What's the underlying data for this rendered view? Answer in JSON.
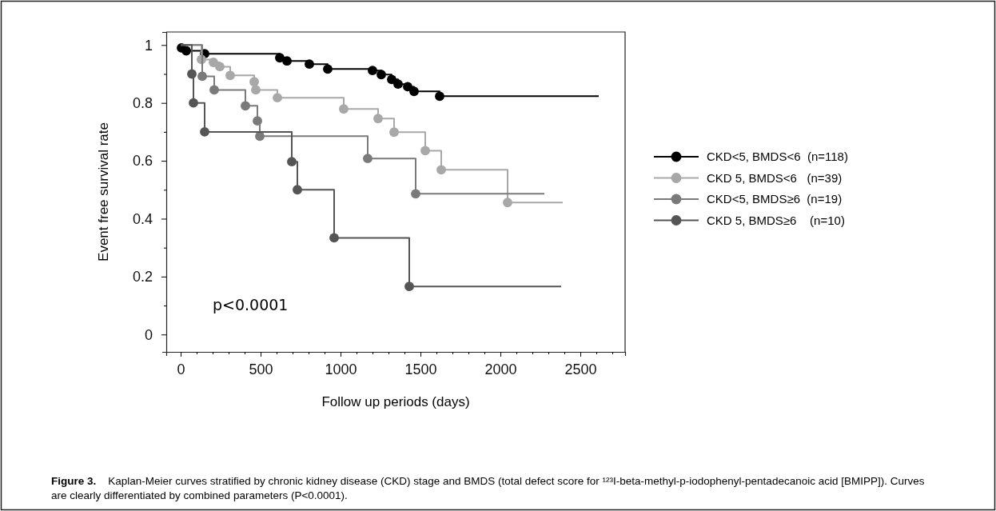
{
  "chart_data": {
    "type": "step",
    "xlabel": "Follow up periods (days)",
    "ylabel": "Event free survival rate",
    "xlim": [
      -90,
      2780
    ],
    "ylim": [
      -0.06,
      1.045
    ],
    "xticks": [
      0,
      {
        "value": 100,
        "label": null
      },
      {
        "value": 200,
        "label": null
      },
      {
        "value": 300,
        "label": null
      },
      {
        "value": 400,
        "label": null
      },
      500,
      {
        "value": 600,
        "label": null
      },
      {
        "value": 700,
        "label": null
      },
      {
        "value": 800,
        "label": null
      },
      {
        "value": 900,
        "label": null
      },
      1000,
      {
        "value": 1100,
        "label": null
      },
      {
        "value": 1200,
        "label": null
      },
      {
        "value": 1300,
        "label": null
      },
      {
        "value": 1400,
        "label": null
      },
      1500,
      {
        "value": 1600,
        "label": null
      },
      {
        "value": 1700,
        "label": null
      },
      {
        "value": 1800,
        "label": null
      },
      {
        "value": 1900,
        "label": null
      },
      2000,
      {
        "value": 2100,
        "label": null
      },
      {
        "value": 2200,
        "label": null
      },
      {
        "value": 2300,
        "label": null
      },
      {
        "value": 2400,
        "label": null
      },
      2500,
      {
        "value": 2600,
        "label": null
      },
      {
        "value": 2700,
        "label": null
      }
    ],
    "yticks": [
      0,
      {
        "value": 0.1,
        "label": null
      },
      0.2,
      {
        "value": 0.3,
        "label": null
      },
      0.4,
      {
        "value": 0.5,
        "label": null
      },
      0.6,
      {
        "value": 0.7,
        "label": null
      },
      0.8,
      {
        "value": 0.9,
        "label": null
      },
      1
    ],
    "marker": "circle",
    "legend": "right",
    "grid": false,
    "series": [
      {
        "name": "CKD<5, BMDS<6  (n=118)",
        "color": "#000000",
        "x": [
          0,
          5,
          35,
          150,
          620,
          665,
          805,
          920,
          1200,
          1255,
          1320,
          1360,
          1420,
          1460,
          1620,
          2615
        ],
        "values": [
          1,
          0.99,
          0.98,
          0.97,
          0.956,
          0.945,
          0.934,
          0.917,
          0.912,
          0.898,
          0.881,
          0.865,
          0.856,
          0.84,
          0.823,
          0.823
        ]
      },
      {
        "name": "CKD 5, BMDS<6   (n=39)",
        "color": "#a8a8a8",
        "x": [
          0,
          130,
          205,
          245,
          310,
          460,
          470,
          605,
          1020,
          1235,
          1335,
          1530,
          1630,
          2045,
          2390
        ],
        "values": [
          1,
          0.95,
          0.94,
          0.925,
          0.895,
          0.873,
          0.845,
          0.818,
          0.779,
          0.746,
          0.699,
          0.635,
          0.569,
          0.456,
          0.456
        ]
      },
      {
        "name": "CKD<5, BMDS≥6  (n=19)",
        "color": "#7a7a7a",
        "x": [
          0,
          135,
          210,
          405,
          480,
          495,
          1170,
          1470,
          2275
        ],
        "values": [
          1,
          0.892,
          0.845,
          0.79,
          0.738,
          0.685,
          0.608,
          0.486,
          0.486
        ]
      },
      {
        "name": "CKD 5, BMDS≥6    (n=10)",
        "color": "#555555",
        "x": [
          0,
          70,
          80,
          150,
          695,
          730,
          960,
          1430,
          2380
        ],
        "values": [
          1,
          0.9,
          0.8,
          0.7,
          0.597,
          0.5,
          0.334,
          0.166,
          0.166
        ]
      }
    ],
    "annotations": [
      "p<0.0001",
      "Figure 3.",
      "Kaplan-Meier curves stratified by chronic kidney disease (CKD) stage and BMDS (total defect score for ¹²³I-beta-methyl-p-iodophenyl-pentadecanoic acid [BMIPP]). Curves are clearly differentiated by combined parameters (P<0.0001)."
    ]
  }
}
